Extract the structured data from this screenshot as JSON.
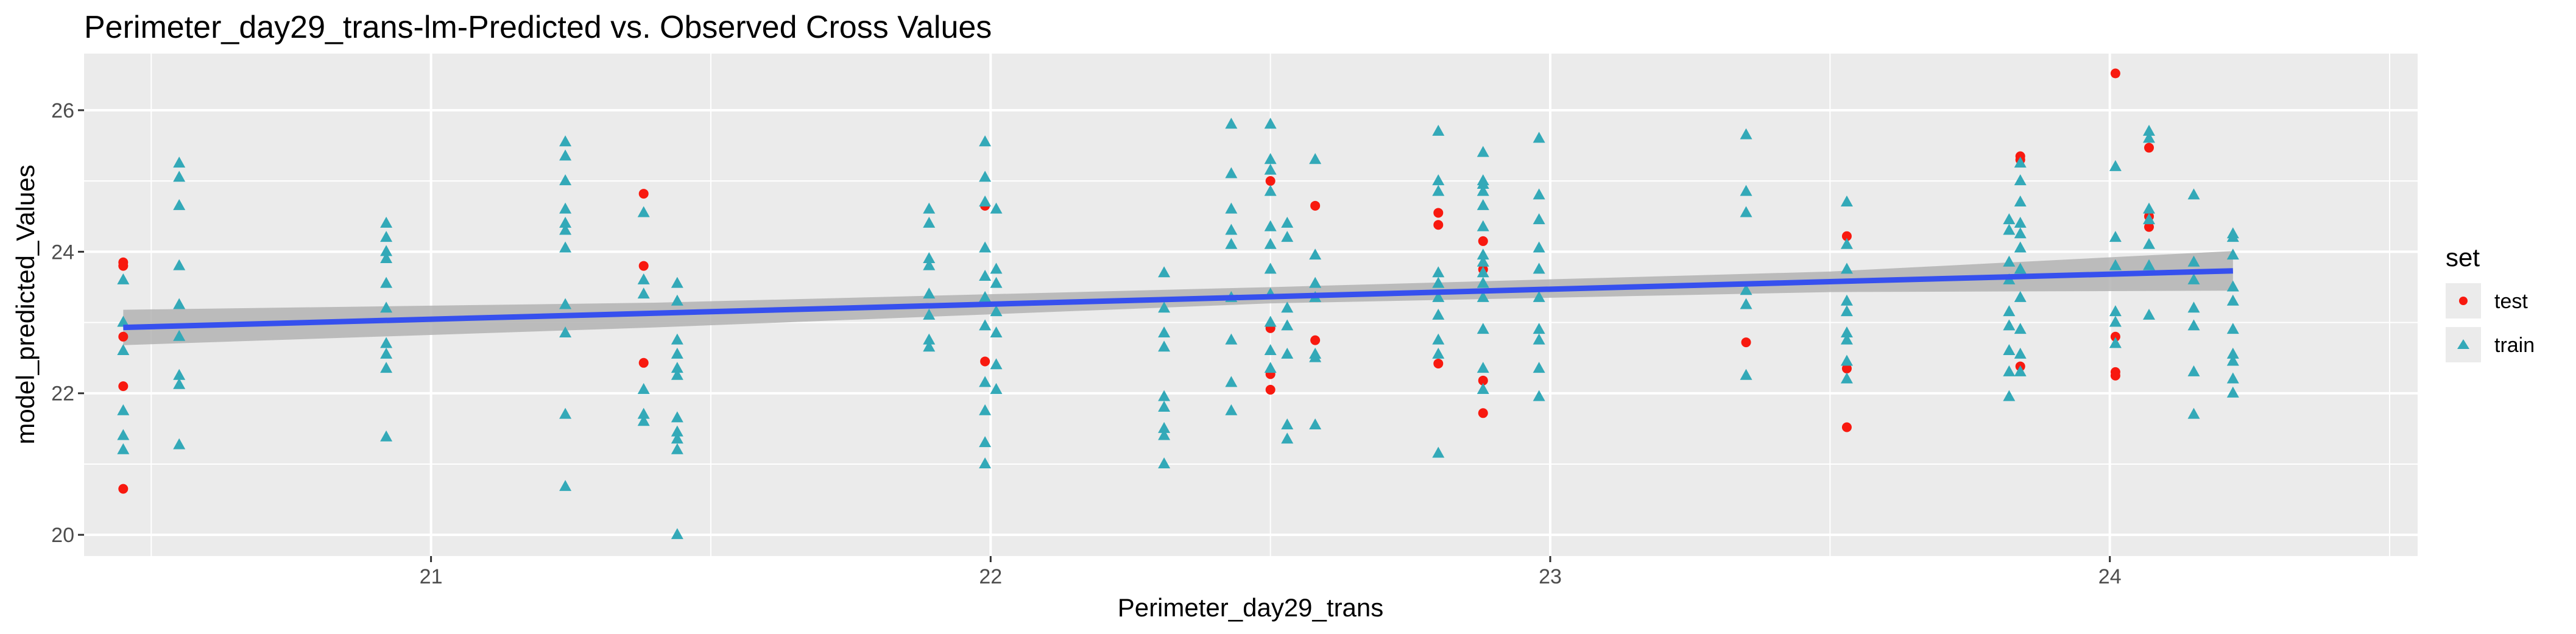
{
  "chart_data": {
    "type": "scatter",
    "title": "Perimeter_day29_trans-lm-Predicted vs. Observed Cross Values",
    "xlabel": "Perimeter_day29_trans",
    "ylabel": "model_predicted_Values",
    "xlim": [
      20.38,
      24.55
    ],
    "ylim": [
      19.7,
      26.8
    ],
    "x_ticks": [
      21,
      22,
      23,
      24
    ],
    "y_ticks": [
      20,
      22,
      24,
      26
    ],
    "grid": true,
    "legend": {
      "title": "set",
      "position": "right",
      "entries": [
        "test",
        "train"
      ]
    },
    "colors": {
      "test": "#f8190f",
      "train": "#33a9b8",
      "fit_line": "#3650ee",
      "confidence_band": "#b3b3b3",
      "panel": "#ebebeb",
      "grid": "#ffffff"
    },
    "fit": {
      "method": "lm",
      "x": [
        20.45,
        24.22
      ],
      "y": [
        22.93,
        23.73
      ],
      "se_band": [
        [
          20.45,
          22.68,
          23.18
        ],
        [
          21.4,
          22.93,
          23.28
        ],
        [
          22.5,
          23.27,
          23.5
        ],
        [
          23.5,
          23.43,
          23.72
        ],
        [
          24.22,
          23.45,
          24.01
        ]
      ]
    },
    "series": [
      {
        "name": "test",
        "shape": "circle",
        "points": [
          [
            20.45,
            23.85
          ],
          [
            20.45,
            23.8
          ],
          [
            20.45,
            22.8
          ],
          [
            20.45,
            22.1
          ],
          [
            20.45,
            20.65
          ],
          [
            21.38,
            24.82
          ],
          [
            21.38,
            23.8
          ],
          [
            21.38,
            22.43
          ],
          [
            21.99,
            24.65
          ],
          [
            21.99,
            22.45
          ],
          [
            22.5,
            25.0
          ],
          [
            22.5,
            22.92
          ],
          [
            22.5,
            22.27
          ],
          [
            22.5,
            22.05
          ],
          [
            22.58,
            24.65
          ],
          [
            22.58,
            22.75
          ],
          [
            22.8,
            24.55
          ],
          [
            22.8,
            24.38
          ],
          [
            22.8,
            22.42
          ],
          [
            22.88,
            24.15
          ],
          [
            22.88,
            23.75
          ],
          [
            22.88,
            22.18
          ],
          [
            22.88,
            21.72
          ],
          [
            23.35,
            22.72
          ],
          [
            23.53,
            24.22
          ],
          [
            23.53,
            22.35
          ],
          [
            23.53,
            21.52
          ],
          [
            23.84,
            25.35
          ],
          [
            23.84,
            25.3
          ],
          [
            23.84,
            22.38
          ],
          [
            24.01,
            26.52
          ],
          [
            24.01,
            22.8
          ],
          [
            24.01,
            22.3
          ],
          [
            24.01,
            22.25
          ],
          [
            24.07,
            25.47
          ],
          [
            24.07,
            24.5
          ],
          [
            24.07,
            24.35
          ]
        ]
      },
      {
        "name": "train",
        "shape": "triangle",
        "points": [
          [
            20.45,
            23.6
          ],
          [
            20.45,
            23.0
          ],
          [
            20.45,
            22.6
          ],
          [
            20.45,
            21.75
          ],
          [
            20.45,
            21.4
          ],
          [
            20.45,
            21.2
          ],
          [
            20.55,
            25.25
          ],
          [
            20.55,
            25.05
          ],
          [
            20.55,
            24.65
          ],
          [
            20.55,
            23.8
          ],
          [
            20.55,
            23.25
          ],
          [
            20.55,
            22.8
          ],
          [
            20.55,
            22.25
          ],
          [
            20.55,
            22.12
          ],
          [
            20.55,
            21.27
          ],
          [
            20.92,
            24.4
          ],
          [
            20.92,
            24.2
          ],
          [
            20.92,
            24.0
          ],
          [
            20.92,
            23.9
          ],
          [
            20.92,
            23.55
          ],
          [
            20.92,
            23.2
          ],
          [
            20.92,
            22.7
          ],
          [
            20.92,
            22.55
          ],
          [
            20.92,
            22.35
          ],
          [
            20.92,
            21.38
          ],
          [
            21.24,
            25.55
          ],
          [
            21.24,
            25.35
          ],
          [
            21.24,
            25.0
          ],
          [
            21.24,
            24.6
          ],
          [
            21.24,
            24.4
          ],
          [
            21.24,
            24.3
          ],
          [
            21.24,
            24.05
          ],
          [
            21.24,
            23.25
          ],
          [
            21.24,
            22.85
          ],
          [
            21.24,
            21.7
          ],
          [
            21.24,
            20.68
          ],
          [
            21.38,
            24.55
          ],
          [
            21.38,
            23.6
          ],
          [
            21.38,
            23.4
          ],
          [
            21.38,
            22.05
          ],
          [
            21.38,
            21.7
          ],
          [
            21.38,
            21.6
          ],
          [
            21.44,
            23.55
          ],
          [
            21.44,
            23.3
          ],
          [
            21.44,
            22.75
          ],
          [
            21.44,
            22.55
          ],
          [
            21.44,
            22.35
          ],
          [
            21.44,
            22.25
          ],
          [
            21.44,
            21.65
          ],
          [
            21.44,
            21.45
          ],
          [
            21.44,
            21.35
          ],
          [
            21.44,
            21.2
          ],
          [
            21.44,
            20.0
          ],
          [
            21.89,
            24.6
          ],
          [
            21.89,
            24.4
          ],
          [
            21.89,
            23.9
          ],
          [
            21.89,
            23.8
          ],
          [
            21.89,
            23.4
          ],
          [
            21.89,
            23.1
          ],
          [
            21.89,
            22.75
          ],
          [
            21.89,
            22.65
          ],
          [
            21.99,
            25.55
          ],
          [
            21.99,
            25.05
          ],
          [
            21.99,
            24.7
          ],
          [
            21.99,
            24.05
          ],
          [
            21.99,
            23.65
          ],
          [
            21.99,
            23.35
          ],
          [
            21.99,
            22.95
          ],
          [
            21.99,
            22.15
          ],
          [
            21.99,
            21.75
          ],
          [
            21.99,
            21.3
          ],
          [
            21.99,
            21.0
          ],
          [
            22.01,
            24.6
          ],
          [
            22.01,
            23.75
          ],
          [
            22.01,
            23.55
          ],
          [
            22.01,
            23.15
          ],
          [
            22.01,
            22.85
          ],
          [
            22.01,
            22.4
          ],
          [
            22.01,
            22.05
          ],
          [
            22.31,
            23.7
          ],
          [
            22.31,
            23.2
          ],
          [
            22.31,
            22.85
          ],
          [
            22.31,
            22.65
          ],
          [
            22.31,
            21.95
          ],
          [
            22.31,
            21.8
          ],
          [
            22.31,
            21.5
          ],
          [
            22.31,
            21.4
          ],
          [
            22.31,
            21.0
          ],
          [
            22.43,
            25.8
          ],
          [
            22.43,
            25.1
          ],
          [
            22.43,
            24.6
          ],
          [
            22.43,
            24.3
          ],
          [
            22.43,
            24.1
          ],
          [
            22.43,
            23.35
          ],
          [
            22.43,
            22.75
          ],
          [
            22.43,
            22.15
          ],
          [
            22.43,
            21.75
          ],
          [
            22.5,
            25.8
          ],
          [
            22.5,
            25.3
          ],
          [
            22.5,
            25.15
          ],
          [
            22.5,
            24.85
          ],
          [
            22.5,
            24.35
          ],
          [
            22.5,
            24.1
          ],
          [
            22.5,
            23.75
          ],
          [
            22.5,
            23.4
          ],
          [
            22.5,
            23.0
          ],
          [
            22.5,
            22.6
          ],
          [
            22.5,
            22.35
          ],
          [
            22.53,
            24.4
          ],
          [
            22.53,
            24.2
          ],
          [
            22.53,
            23.2
          ],
          [
            22.53,
            22.95
          ],
          [
            22.53,
            22.55
          ],
          [
            22.53,
            21.55
          ],
          [
            22.53,
            21.35
          ],
          [
            22.58,
            25.3
          ],
          [
            22.58,
            23.95
          ],
          [
            22.58,
            23.55
          ],
          [
            22.58,
            23.35
          ],
          [
            22.58,
            22.55
          ],
          [
            22.58,
            22.5
          ],
          [
            22.58,
            21.55
          ],
          [
            22.8,
            25.7
          ],
          [
            22.8,
            25.0
          ],
          [
            22.8,
            24.85
          ],
          [
            22.8,
            23.7
          ],
          [
            22.8,
            23.55
          ],
          [
            22.8,
            23.35
          ],
          [
            22.8,
            23.1
          ],
          [
            22.8,
            22.75
          ],
          [
            22.8,
            22.55
          ],
          [
            22.8,
            21.15
          ],
          [
            22.88,
            25.4
          ],
          [
            22.88,
            25.0
          ],
          [
            22.88,
            24.95
          ],
          [
            22.88,
            24.85
          ],
          [
            22.88,
            24.65
          ],
          [
            22.88,
            24.35
          ],
          [
            22.88,
            23.95
          ],
          [
            22.88,
            23.85
          ],
          [
            22.88,
            23.7
          ],
          [
            22.88,
            23.55
          ],
          [
            22.88,
            23.35
          ],
          [
            22.88,
            22.9
          ],
          [
            22.88,
            22.35
          ],
          [
            22.88,
            22.05
          ],
          [
            22.98,
            25.6
          ],
          [
            22.98,
            24.8
          ],
          [
            22.98,
            24.45
          ],
          [
            22.98,
            24.05
          ],
          [
            22.98,
            23.75
          ],
          [
            22.98,
            23.35
          ],
          [
            22.98,
            22.9
          ],
          [
            22.98,
            22.75
          ],
          [
            22.98,
            22.35
          ],
          [
            22.98,
            21.95
          ],
          [
            23.35,
            25.65
          ],
          [
            23.35,
            24.85
          ],
          [
            23.35,
            24.55
          ],
          [
            23.35,
            23.45
          ],
          [
            23.35,
            23.25
          ],
          [
            23.35,
            22.25
          ],
          [
            23.53,
            24.7
          ],
          [
            23.53,
            24.1
          ],
          [
            23.53,
            23.75
          ],
          [
            23.53,
            23.3
          ],
          [
            23.53,
            23.15
          ],
          [
            23.53,
            22.85
          ],
          [
            23.53,
            22.75
          ],
          [
            23.53,
            22.45
          ],
          [
            23.53,
            22.2
          ],
          [
            23.82,
            24.45
          ],
          [
            23.82,
            24.3
          ],
          [
            23.82,
            23.85
          ],
          [
            23.82,
            23.6
          ],
          [
            23.82,
            23.15
          ],
          [
            23.82,
            22.95
          ],
          [
            23.82,
            22.6
          ],
          [
            23.82,
            22.3
          ],
          [
            23.82,
            21.95
          ],
          [
            23.84,
            25.25
          ],
          [
            23.84,
            25.0
          ],
          [
            23.84,
            24.7
          ],
          [
            23.84,
            24.4
          ],
          [
            23.84,
            24.25
          ],
          [
            23.84,
            24.05
          ],
          [
            23.84,
            23.75
          ],
          [
            23.84,
            23.35
          ],
          [
            23.84,
            22.9
          ],
          [
            23.84,
            22.55
          ],
          [
            23.84,
            22.3
          ],
          [
            24.01,
            25.2
          ],
          [
            24.01,
            24.2
          ],
          [
            24.01,
            23.8
          ],
          [
            24.01,
            23.15
          ],
          [
            24.01,
            23.0
          ],
          [
            24.01,
            22.7
          ],
          [
            24.07,
            25.7
          ],
          [
            24.07,
            25.6
          ],
          [
            24.07,
            24.6
          ],
          [
            24.07,
            24.45
          ],
          [
            24.07,
            24.1
          ],
          [
            24.07,
            23.8
          ],
          [
            24.07,
            23.1
          ],
          [
            24.15,
            24.8
          ],
          [
            24.15,
            23.85
          ],
          [
            24.15,
            23.6
          ],
          [
            24.15,
            23.2
          ],
          [
            24.15,
            22.95
          ],
          [
            24.15,
            22.3
          ],
          [
            24.15,
            21.7
          ],
          [
            24.22,
            24.25
          ],
          [
            24.22,
            24.2
          ],
          [
            24.22,
            23.95
          ],
          [
            24.22,
            23.5
          ],
          [
            24.22,
            23.3
          ],
          [
            24.22,
            22.9
          ],
          [
            24.22,
            22.55
          ],
          [
            24.22,
            22.45
          ],
          [
            24.22,
            22.2
          ],
          [
            24.22,
            22.0
          ]
        ]
      }
    ]
  }
}
